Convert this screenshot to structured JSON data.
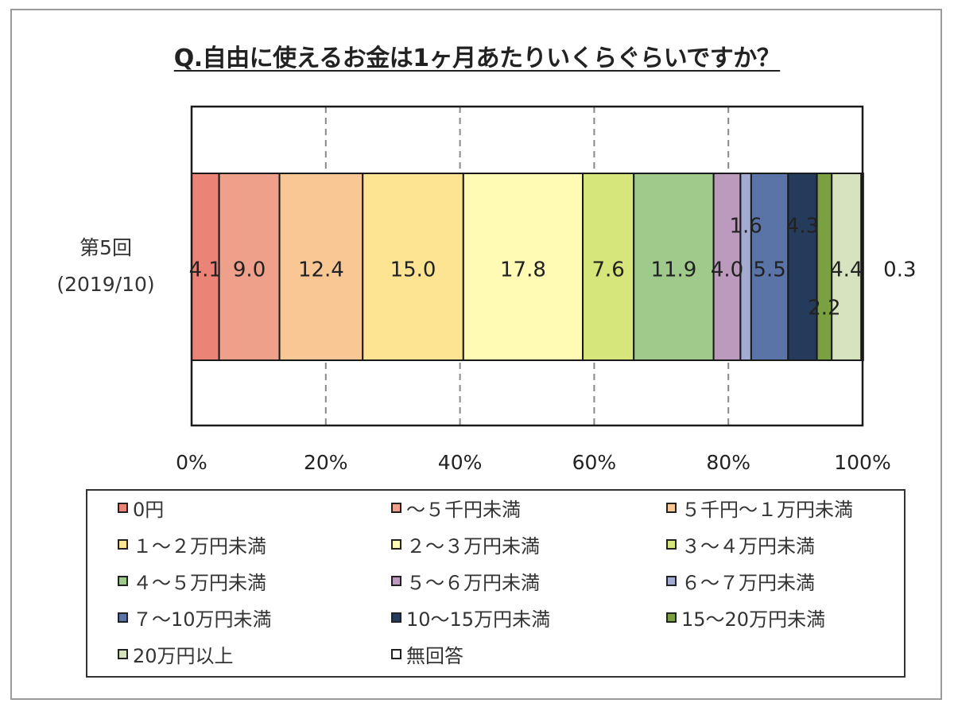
{
  "chart_data": {
    "type": "bar",
    "orientation": "horizontal",
    "stacked": "percent",
    "title": "Q.自由に使えるお金は1ヶ月あたりいくらぐらいですか？",
    "categories": [
      {
        "line1": "第5回",
        "line2": "(2019/10)"
      }
    ],
    "xlim": [
      0,
      100
    ],
    "x_ticks": [
      "0%",
      "20%",
      "40%",
      "60%",
      "80%",
      "100%"
    ],
    "grid": "vertical dashed",
    "legend_position": "bottom",
    "series": [
      {
        "name": "0円",
        "values": [
          4.1
        ],
        "label": "4.1",
        "color": "#EC8377"
      },
      {
        "name": "～５千円未満",
        "values": [
          9.0
        ],
        "label": "9.0",
        "color": "#EEA08A"
      },
      {
        "name": "５千円～１万円未満",
        "values": [
          12.4
        ],
        "label": "12.4",
        "color": "#F9C793"
      },
      {
        "name": "１～２万円未満",
        "values": [
          15.0
        ],
        "label": "15.0",
        "color": "#FDE493"
      },
      {
        "name": "２～３万円未満",
        "values": [
          17.8
        ],
        "label": "17.8",
        "color": "#FFFBB5"
      },
      {
        "name": "３～４万円未満",
        "values": [
          7.6
        ],
        "label": "7.6",
        "color": "#D7E67A"
      },
      {
        "name": "４～５万円未満",
        "values": [
          11.9
        ],
        "label": "11.9",
        "color": "#A0CA8B"
      },
      {
        "name": "５～６万円未満",
        "values": [
          4.0
        ],
        "label": "4.0",
        "color": "#BC9ABD"
      },
      {
        "name": "６～７万円未満",
        "values": [
          1.6
        ],
        "label": "1.6",
        "color": "#A3ABD3"
      },
      {
        "name": "７～10万円未満",
        "values": [
          5.5
        ],
        "label": "5.5",
        "color": "#5A74A8"
      },
      {
        "name": "10～15万円未満",
        "values": [
          4.3
        ],
        "label": "4.3",
        "color": "#243B5C"
      },
      {
        "name": "15～20万円未満",
        "values": [
          2.2
        ],
        "label": "2.2",
        "color": "#7BA041"
      },
      {
        "name": "20万円以上",
        "values": [
          4.4
        ],
        "label": "4.4",
        "color": "#D6E3BE"
      },
      {
        "name": "無回答",
        "values": [
          0.3
        ],
        "label": "0.3",
        "color": "#FFFFFF"
      }
    ]
  }
}
